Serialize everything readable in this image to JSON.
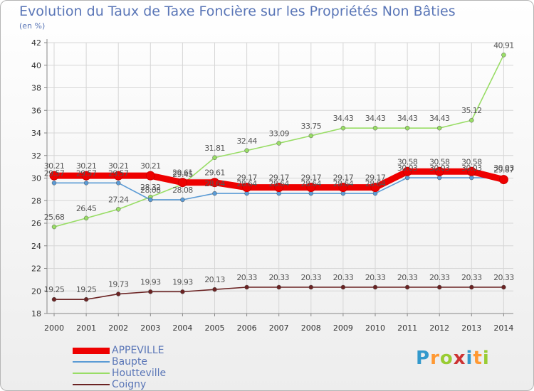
{
  "title": "Evolution du Taux de Taxe Foncière sur les Propriétés Non Bâties",
  "unit_label": "(en %)",
  "logo": {
    "text": "Proxiti",
    "letter_colors": [
      "#3399cc",
      "#ff9933",
      "#99cc33",
      "#cc3333",
      "#3399cc",
      "#ff9933",
      "#99cc33"
    ]
  },
  "chart_data": {
    "type": "line",
    "title": "Evolution du Taux de Taxe Foncière sur les Propriétés Non Bâties",
    "ylabel": "(en %)",
    "x": [
      "2000",
      "2001",
      "2002",
      "2003",
      "2004",
      "2005",
      "2006",
      "2007",
      "2008",
      "2009",
      "2010",
      "2011",
      "2012",
      "2013",
      "2014"
    ],
    "ylim": [
      18,
      42
    ],
    "yticks": [
      "18",
      "20",
      "22",
      "24",
      "26",
      "28",
      "30",
      "32",
      "34",
      "36",
      "38",
      "40",
      "42"
    ],
    "grid": true,
    "legend_position": "bottom-left",
    "series": [
      {
        "name": "APPEVILLE",
        "color": "#ee0000",
        "values": [
          30.21,
          30.21,
          30.21,
          30.21,
          29.61,
          29.61,
          29.17,
          29.17,
          29.17,
          29.17,
          29.17,
          30.58,
          30.58,
          30.58,
          29.87
        ],
        "labels": [
          "30.21",
          "30.21",
          "30.21",
          "30.21",
          "29.61",
          "29.61",
          "29.17",
          "29.17",
          "29.17",
          "29.17",
          "29.17",
          "30.58",
          "30.58",
          "30.58",
          "29.87"
        ]
      },
      {
        "name": "Baupte",
        "color": "#5b9bd5",
        "values": [
          29.57,
          29.57,
          29.57,
          28.08,
          28.08,
          28.64,
          28.64,
          28.64,
          28.64,
          28.64,
          28.64,
          30.03,
          30.03,
          30.03,
          30.03
        ],
        "labels": [
          "29.57",
          "29.57",
          "29.57",
          "28.08",
          "28.08",
          "28.64",
          "28.64",
          "28.64",
          "28.64",
          "28.64",
          "28.64",
          "30.03",
          "30.03",
          "30.03",
          "30.03"
        ]
      },
      {
        "name": "Houtteville",
        "color": "#99dd66",
        "values": [
          25.68,
          26.45,
          27.24,
          28.32,
          29.45,
          31.81,
          32.44,
          33.09,
          33.75,
          34.43,
          34.43,
          34.43,
          34.43,
          35.12,
          40.91
        ],
        "labels": [
          "25.68",
          "26.45",
          "27.24",
          "28.32",
          "29.45",
          "31.81",
          "32.44",
          "33.09",
          "33.75",
          "34.43",
          "34.43",
          "34.43",
          "34.43",
          "35.12",
          "40.91"
        ]
      },
      {
        "name": "Coigny",
        "color": "#6b2323",
        "values": [
          19.25,
          19.25,
          19.73,
          19.93,
          19.93,
          20.13,
          20.33,
          20.33,
          20.33,
          20.33,
          20.33,
          20.33,
          20.33,
          20.33,
          20.33
        ],
        "labels": [
          "19.25",
          "19.25",
          "19.73",
          "19.93",
          "19.93",
          "20.13",
          "20.33",
          "20.33",
          "20.33",
          "20.33",
          "20.33",
          "20.33",
          "20.33",
          "20.33",
          "20.33"
        ]
      }
    ]
  }
}
